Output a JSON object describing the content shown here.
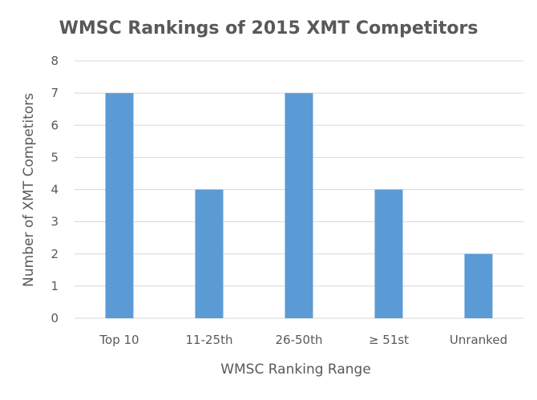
{
  "chart_data": {
    "type": "bar",
    "title": "WMSC Rankings of 2015 XMT Competitors",
    "xlabel": "WMSC Ranking Range",
    "ylabel": "Number of XMT Competitors",
    "categories": [
      "Top 10",
      "11-25th",
      "26-50th",
      "≥ 51st",
      "Unranked"
    ],
    "values": [
      7,
      4,
      7,
      4,
      2
    ],
    "ylim": [
      0,
      8
    ],
    "yticks": [
      "0",
      "1",
      "2",
      "3",
      "4",
      "5",
      "6",
      "7",
      "8"
    ],
    "grid": true,
    "legend": "none",
    "bar_color": "#5b9bd5"
  }
}
